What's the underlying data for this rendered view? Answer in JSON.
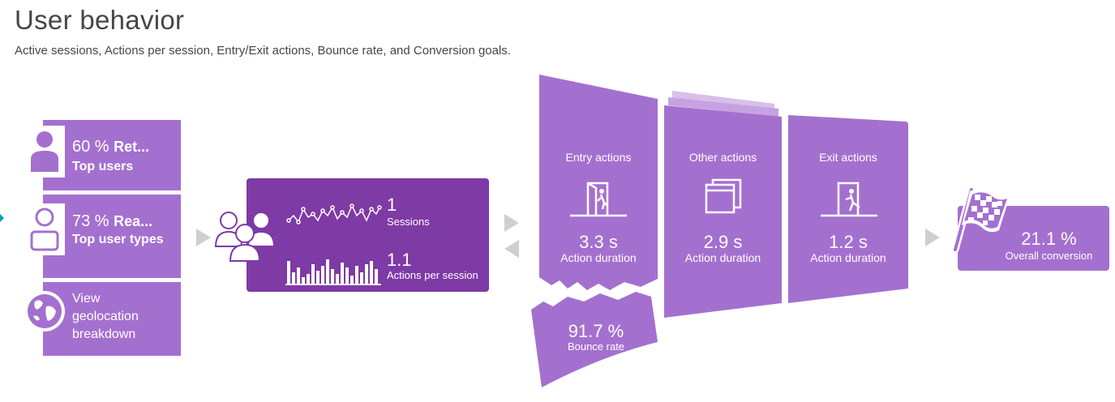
{
  "header": {
    "title": "User behavior",
    "subtitle": "Active sessions, Actions per session, Entry/Exit actions, Bounce rate, and Conversion goals."
  },
  "colors": {
    "purple": "#a470cf",
    "dark_purple": "#7e3aa5",
    "arrow_gray": "#cfcfcf",
    "accent_teal": "#00a1b2"
  },
  "tiles": [
    {
      "value": "60 %",
      "label": "Ret...",
      "caption": "Top users",
      "icon": "user-icon"
    },
    {
      "value": "73 %",
      "label": "Rea...",
      "caption": "Top user types",
      "icon": "user-type-icon"
    },
    {
      "caption": "View geolocation breakdown",
      "icon": "globe-icon"
    }
  ],
  "sessions": {
    "icon": "users-group-icon",
    "sessions_value": "1",
    "sessions_label": "Sessions",
    "actions_value": "1.1",
    "actions_label": "Actions per session"
  },
  "funnel": {
    "entry": {
      "title": "Entry actions",
      "value": "3.3 s",
      "label": "Action duration",
      "icon": "entry-door-icon"
    },
    "other": {
      "title": "Other actions",
      "value": "2.9 s",
      "label": "Action duration",
      "icon": "windows-icon"
    },
    "exit": {
      "title": "Exit actions",
      "value": "1.2 s",
      "label": "Action duration",
      "icon": "exit-door-icon"
    },
    "bounce": {
      "value": "91.7 %",
      "label": "Bounce rate"
    }
  },
  "conversion": {
    "value": "21.1 %",
    "label": "Overall conversion",
    "icon": "checkered-flag-icon"
  }
}
